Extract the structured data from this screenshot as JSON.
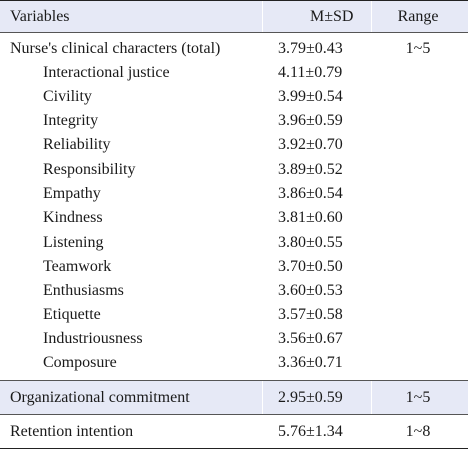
{
  "header": {
    "variables": "Variables",
    "msd": "M±SD",
    "range": "Range"
  },
  "group1": {
    "label": "Nurse's clinical characters (total)",
    "msd": "3.79±0.43",
    "range": "1~5",
    "items": [
      {
        "label": "Interactional justice",
        "msd": "4.11±0.79"
      },
      {
        "label": "Civility",
        "msd": "3.99±0.54"
      },
      {
        "label": "Integrity",
        "msd": "3.96±0.59"
      },
      {
        "label": "Reliability",
        "msd": "3.92±0.70"
      },
      {
        "label": "Responsibility",
        "msd": "3.89±0.52"
      },
      {
        "label": "Empathy",
        "msd": "3.86±0.54"
      },
      {
        "label": "Kindness",
        "msd": "3.81±0.60"
      },
      {
        "label": "Listening",
        "msd": "3.80±0.55"
      },
      {
        "label": "Teamwork",
        "msd": "3.70±0.50"
      },
      {
        "label": "Enthusiasms",
        "msd": "3.60±0.53"
      },
      {
        "label": "Etiquette",
        "msd": "3.57±0.58"
      },
      {
        "label": "Industriousness",
        "msd": "3.56±0.67"
      },
      {
        "label": "Composure",
        "msd": "3.36±0.71"
      }
    ]
  },
  "org": {
    "label": "Organizational commitment",
    "msd": "2.95±0.59",
    "range": "1~5"
  },
  "retention": {
    "label": "Retention intention",
    "msd": "5.76±1.34",
    "range": "1~8"
  }
}
